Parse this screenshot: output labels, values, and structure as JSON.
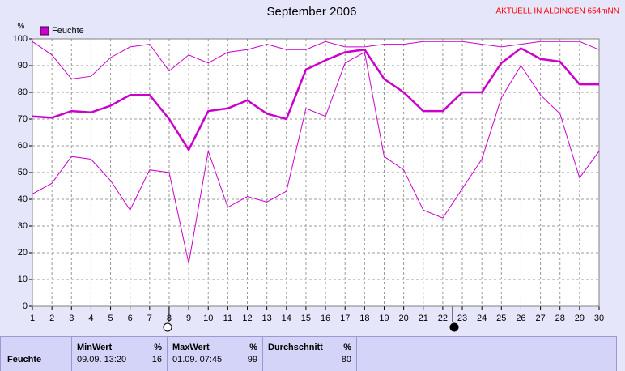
{
  "chart_data": {
    "type": "line",
    "title": "September 2006",
    "subtitle": "AKTUELL IN ALDINGEN 654mNN",
    "y_unit": "%",
    "x": [
      1,
      2,
      3,
      4,
      5,
      6,
      7,
      8,
      9,
      10,
      11,
      12,
      13,
      14,
      15,
      16,
      17,
      18,
      19,
      20,
      21,
      22,
      23,
      24,
      25,
      26,
      27,
      28,
      29,
      30
    ],
    "xlim": [
      1,
      30
    ],
    "xticks": [
      1,
      2,
      3,
      4,
      5,
      6,
      7,
      8,
      9,
      10,
      11,
      12,
      13,
      14,
      15,
      16,
      17,
      18,
      19,
      20,
      21,
      22,
      23,
      24,
      25,
      26,
      27,
      28,
      29,
      30
    ],
    "ylim": [
      0,
      100
    ],
    "yticks": [
      0,
      10,
      20,
      30,
      40,
      50,
      60,
      70,
      80,
      90,
      100
    ],
    "grid": true,
    "series": [
      {
        "color": "#cc00cc",
        "width": 1,
        "values": [
          99,
          94,
          85,
          86,
          93,
          97,
          98,
          88,
          94,
          91,
          95,
          96,
          98,
          96,
          96,
          99,
          97,
          97,
          98,
          98,
          99,
          99,
          99,
          98,
          97,
          98,
          99,
          99,
          99,
          96
        ]
      },
      {
        "name": "Feuchte",
        "color": "#cc00cc",
        "width": 2.5,
        "values": [
          71,
          70.5,
          73,
          72.5,
          75,
          79,
          79,
          70,
          58.5,
          73,
          74,
          77,
          72,
          70,
          88.5,
          92,
          95,
          96,
          85,
          80,
          73,
          73,
          80,
          80,
          91,
          96.5,
          92.5,
          91.5,
          83,
          83
        ]
      },
      {
        "color": "#cc00cc",
        "width": 1,
        "values": [
          42,
          46,
          56,
          55,
          47,
          36,
          51,
          50,
          16,
          58,
          37,
          41,
          39,
          43,
          74,
          71,
          91,
          95,
          56,
          51,
          36,
          33,
          44,
          55,
          78,
          90,
          79,
          72,
          48,
          58
        ]
      }
    ]
  },
  "stats": {
    "row_label": "Feuchte",
    "columns": [
      {
        "title": "MinWert",
        "unit": "%",
        "time": "09.09.  13:20",
        "value": 16
      },
      {
        "title": "MaxWert",
        "unit": "%",
        "time": "01.09.  07:45",
        "value": 99
      },
      {
        "title": "Durchschnitt",
        "unit": "%",
        "value": 80
      }
    ]
  }
}
